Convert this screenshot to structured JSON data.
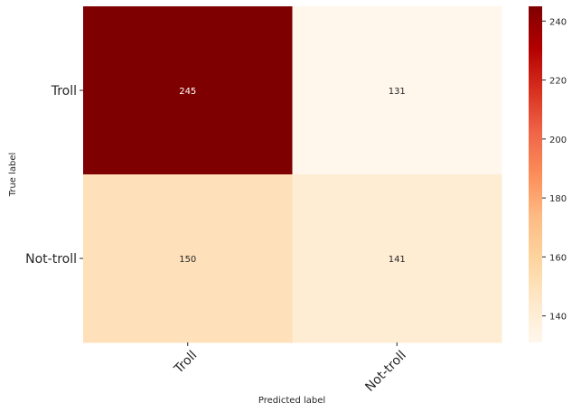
{
  "chart_data": {
    "type": "heatmap",
    "title": "",
    "xlabel": "Predicted label",
    "ylabel": "True label",
    "x_categories": [
      "Troll",
      "Not-troll"
    ],
    "y_categories": [
      "Troll",
      "Not-troll"
    ],
    "values": [
      [
        245,
        131
      ],
      [
        150,
        141
      ]
    ],
    "colorbar": {
      "range": [
        131,
        245
      ],
      "ticks": [
        140,
        160,
        180,
        200,
        220,
        240
      ],
      "colormap": "OrRd"
    },
    "grid": false,
    "legend": "none"
  },
  "colors": {
    "colormap_stops": [
      "#fff7ec",
      "#fee8c8",
      "#fdd49e",
      "#fdbb84",
      "#fc8d59",
      "#ef6548",
      "#d7301f",
      "#b30000",
      "#7f0000"
    ],
    "low_value_text": "#262626",
    "high_value_text": "#ffffff",
    "tick_color": "#262626"
  }
}
